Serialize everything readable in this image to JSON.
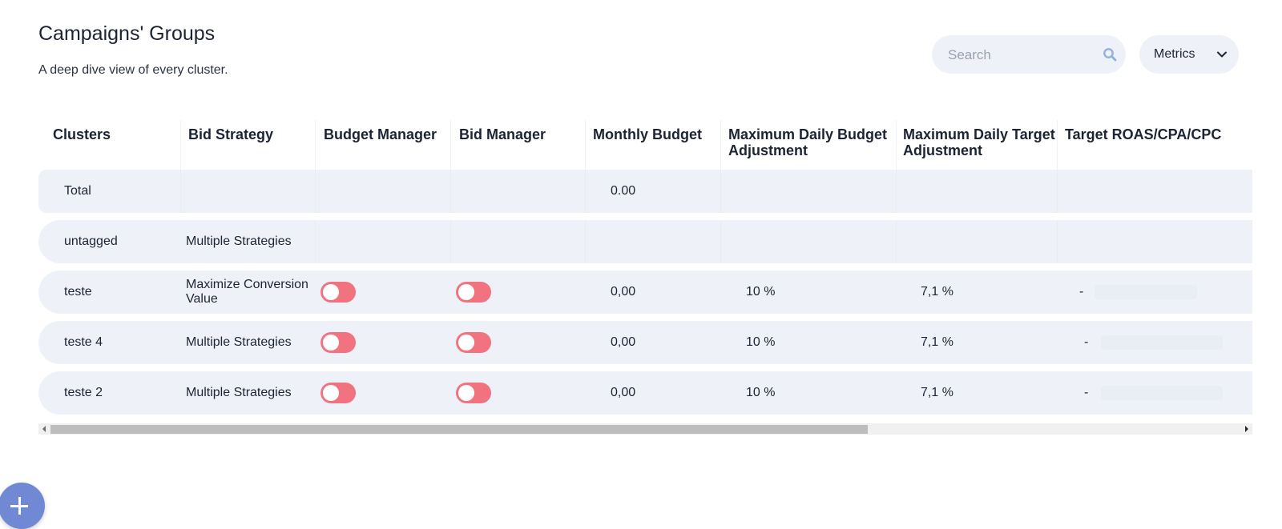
{
  "page": {
    "title": "Campaigns' Groups",
    "subtitle": "A deep dive view of every cluster."
  },
  "search": {
    "placeholder": "Search",
    "value": "",
    "icon": "search-icon"
  },
  "metrics": {
    "label": "Metrics",
    "icon": "chevron-down-icon"
  },
  "table": {
    "columns": [
      "Clusters",
      "Bid Strategy",
      "Budget Manager",
      "Bid Manager",
      "Monthly Budget",
      "Maximum Daily Budget Adjustment",
      "Maximum Daily Target Adjustment",
      "Target ROAS/CPA/CPC"
    ],
    "rows": [
      {
        "cluster": "Total",
        "bid_strategy": "",
        "budget_manager": null,
        "bid_manager": null,
        "monthly_budget": "0.00",
        "max_daily_budget_adj": "",
        "max_daily_target_adj": "",
        "target": ""
      },
      {
        "cluster": "untagged",
        "bid_strategy": "Multiple Strategies",
        "budget_manager": null,
        "bid_manager": null,
        "monthly_budget": "",
        "max_daily_budget_adj": "",
        "max_daily_target_adj": "",
        "target": ""
      },
      {
        "cluster": "teste",
        "bid_strategy": "Maximize Conversion Value",
        "budget_manager": "off",
        "bid_manager": "off",
        "monthly_budget": "0,00",
        "max_daily_budget_adj": "10 %",
        "max_daily_target_adj": "7,1 %",
        "target": "-"
      },
      {
        "cluster": "teste 4",
        "bid_strategy": "Multiple Strategies",
        "budget_manager": "off",
        "bid_manager": "off",
        "monthly_budget": "0,00",
        "max_daily_budget_adj": "10 %",
        "max_daily_target_adj": "7,1 %",
        "target": "-"
      },
      {
        "cluster": "teste 2",
        "bid_strategy": "Multiple Strategies",
        "budget_manager": "off",
        "bid_manager": "off",
        "monthly_budget": "0,00",
        "max_daily_budget_adj": "10 %",
        "max_daily_target_adj": "7,1 %",
        "target": "-"
      }
    ]
  },
  "fab": {
    "icon": "plus-icon"
  },
  "colors": {
    "row_bg": "#eef2f8",
    "toggle_off": "#f27380",
    "fab": "#7189d4",
    "text": "#1c2434"
  }
}
